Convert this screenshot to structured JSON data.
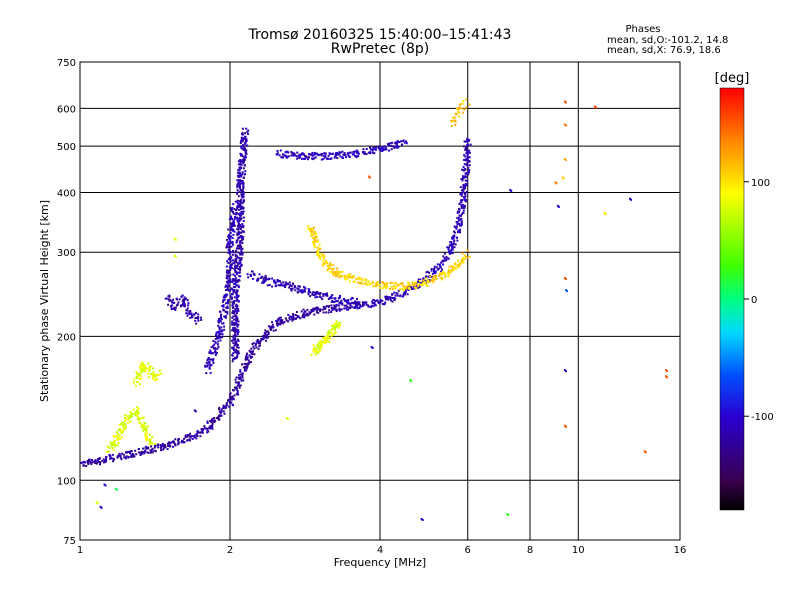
{
  "chart_data": {
    "type": "scatter",
    "title": "Tromsø 20160325 15:40:00–15:41:43",
    "subtitle": "RwPretec (8p)",
    "xlabel": "Frequency [MHz]",
    "ylabel": "Stationary phase Virtual Height [km]",
    "x_scale": "log",
    "y_scale": "log",
    "xlim": [
      1,
      16
    ],
    "ylim": [
      75,
      750
    ],
    "x_ticks": [
      {
        "value": 1,
        "label": "1"
      },
      {
        "value": 2,
        "label": "2"
      },
      {
        "value": 4,
        "label": "4"
      },
      {
        "value": 6,
        "label": "6"
      },
      {
        "value": 8,
        "label": "8"
      },
      {
        "value": 10,
        "label": "10"
      },
      {
        "value": 16,
        "label": "16"
      }
    ],
    "x_gridlines": [
      2,
      4,
      6,
      8,
      10
    ],
    "y_ticks": [
      {
        "value": 75,
        "label": "75"
      },
      {
        "value": 100,
        "label": "100"
      },
      {
        "value": 200,
        "label": "200"
      },
      {
        "value": 300,
        "label": "300"
      },
      {
        "value": 400,
        "label": "400"
      },
      {
        "value": 500,
        "label": "500"
      },
      {
        "value": 600,
        "label": "600"
      },
      {
        "value": 750,
        "label": "750"
      }
    ],
    "y_gridlines": [
      100,
      200,
      300,
      400,
      500,
      600
    ],
    "grid": true,
    "stats": {
      "header": "Phases",
      "line_o": "mean, sd,O:-101.2, 14.8",
      "line_x": "mean, sd,X:  76.9, 18.6"
    },
    "colorbar": {
      "label": "[deg]",
      "range": [
        -180,
        180
      ],
      "ticks": [
        {
          "value": 100,
          "label": "100"
        },
        {
          "value": 0,
          "label": "0"
        },
        {
          "value": -100,
          "label": "-100"
        }
      ]
    },
    "series": [
      {
        "phase": -120,
        "density": 3,
        "x": [
          1.0,
          1.2,
          1.4,
          1.6,
          1.8,
          2.0,
          2.2,
          2.5,
          2.9,
          3.3
        ],
        "y": [
          108,
          112,
          116,
          121,
          128,
          145,
          185,
          215,
          225,
          230
        ]
      },
      {
        "phase": -110,
        "density": 3,
        "x": [
          3.3,
          3.6,
          4.0,
          4.4,
          4.8,
          5.2,
          5.5,
          5.7,
          5.85,
          5.95,
          6.0
        ],
        "y": [
          230,
          232,
          236,
          245,
          258,
          275,
          298,
          330,
          380,
          450,
          520
        ]
      },
      {
        "phase": -110,
        "density": 3,
        "x": [
          2.5,
          2.7,
          3.0,
          3.3,
          3.6,
          3.9,
          4.2,
          4.5
        ],
        "y": [
          482,
          478,
          476,
          478,
          483,
          490,
          500,
          510
        ]
      },
      {
        "phase": -115,
        "density": 4,
        "x": [
          2.05,
          2.05,
          2.1,
          2.1,
          2.15
        ],
        "y": [
          180,
          250,
          320,
          420,
          540
        ]
      },
      {
        "phase": -110,
        "density": 3,
        "x": [
          1.8,
          1.9,
          2.0,
          2.0,
          2.05
        ],
        "y": [
          170,
          200,
          260,
          320,
          380
        ]
      },
      {
        "phase": -110,
        "density": 3,
        "x": [
          2.2,
          2.4,
          2.6,
          2.8,
          3.0,
          3.2,
          3.4,
          3.6
        ],
        "y": [
          270,
          260,
          255,
          250,
          245,
          240,
          238,
          236
        ]
      },
      {
        "phase": 105,
        "density": 3,
        "x": [
          2.9,
          3.0,
          3.1,
          3.3,
          3.6,
          4.0,
          4.4,
          4.9,
          5.4,
          5.8,
          6.0
        ],
        "y": [
          340,
          305,
          285,
          270,
          262,
          256,
          254,
          258,
          270,
          285,
          300
        ]
      },
      {
        "phase": 80,
        "density": 4,
        "x": [
          2.95,
          3.0,
          3.1,
          3.2,
          3.3
        ],
        "y": [
          185,
          190,
          195,
          205,
          215
        ]
      },
      {
        "phase": 110,
        "density": 2,
        "x": [
          5.6,
          5.75,
          5.9,
          6.0
        ],
        "y": [
          560,
          590,
          610,
          620
        ]
      },
      {
        "phase": -115,
        "density": 3,
        "x": [
          1.5,
          1.55,
          1.6,
          1.65,
          1.7,
          1.75
        ],
        "y": [
          240,
          230,
          240,
          225,
          220,
          215
        ]
      },
      {
        "phase": 80,
        "density": 3,
        "x": [
          1.3,
          1.32,
          1.35,
          1.4,
          1.45
        ],
        "y": [
          160,
          170,
          175,
          165,
          168
        ]
      },
      {
        "phase": 80,
        "density": 3,
        "x": [
          1.15,
          1.2,
          1.25,
          1.3,
          1.35,
          1.4
        ],
        "y": [
          115,
          125,
          135,
          140,
          128,
          118
        ]
      }
    ],
    "scatter_points": [
      {
        "x": 9.4,
        "y": 620,
        "phase": 150
      },
      {
        "x": 9.4,
        "y": 555,
        "phase": 140
      },
      {
        "x": 9.4,
        "y": 470,
        "phase": 120
      },
      {
        "x": 9.3,
        "y": 430,
        "phase": 110
      },
      {
        "x": 9.0,
        "y": 420,
        "phase": 140
      },
      {
        "x": 9.1,
        "y": 375,
        "phase": -100
      },
      {
        "x": 9.4,
        "y": 265,
        "phase": 150
      },
      {
        "x": 9.45,
        "y": 250,
        "phase": -60
      },
      {
        "x": 9.4,
        "y": 170,
        "phase": -100
      },
      {
        "x": 9.4,
        "y": 130,
        "phase": 150
      },
      {
        "x": 10.8,
        "y": 605,
        "phase": 160
      },
      {
        "x": 11.3,
        "y": 362,
        "phase": 100
      },
      {
        "x": 12.7,
        "y": 388,
        "phase": -100
      },
      {
        "x": 15.0,
        "y": 170,
        "phase": 150
      },
      {
        "x": 15.0,
        "y": 165,
        "phase": 150
      },
      {
        "x": 13.6,
        "y": 115,
        "phase": 150
      },
      {
        "x": 7.2,
        "y": 85,
        "phase": 20
      },
      {
        "x": 7.3,
        "y": 405,
        "phase": -100
      },
      {
        "x": 4.6,
        "y": 162,
        "phase": 20
      },
      {
        "x": 4.85,
        "y": 83,
        "phase": -100
      },
      {
        "x": 3.85,
        "y": 190,
        "phase": -100
      },
      {
        "x": 3.8,
        "y": 432,
        "phase": 150
      },
      {
        "x": 2.6,
        "y": 135,
        "phase": 80
      },
      {
        "x": 1.7,
        "y": 140,
        "phase": -110
      },
      {
        "x": 1.55,
        "y": 320,
        "phase": 80
      },
      {
        "x": 1.55,
        "y": 295,
        "phase": 80
      },
      {
        "x": 1.12,
        "y": 98,
        "phase": -110
      },
      {
        "x": 1.18,
        "y": 96,
        "phase": 10
      },
      {
        "x": 1.08,
        "y": 90,
        "phase": 80
      },
      {
        "x": 1.1,
        "y": 88,
        "phase": -110
      }
    ]
  }
}
